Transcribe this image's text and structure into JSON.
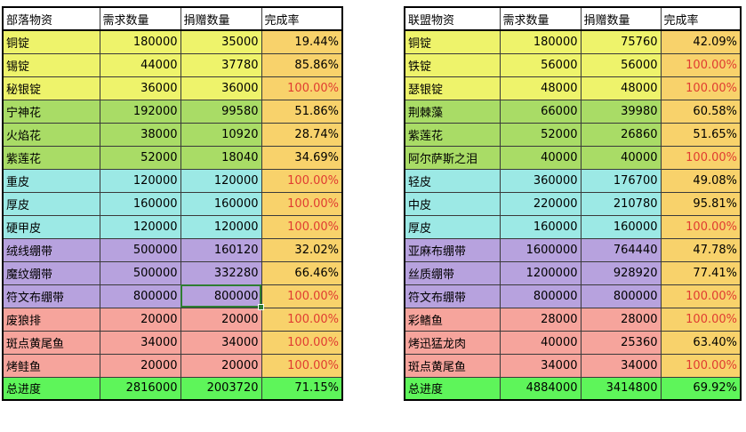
{
  "colors": {
    "ore": "#eef36b",
    "herb": "#a9dc66",
    "leather": "#9ce9e5",
    "bandage": "#b7a2de",
    "food": "#f6a49c",
    "rate": "#f8d26b",
    "total": "#5ef55a",
    "rate_full_text": "#e03c31"
  },
  "left": {
    "headers": [
      "部落物资",
      "需求数量",
      "捐赠数量",
      "完成率"
    ],
    "rows": [
      {
        "name": "铜锭",
        "need": "180000",
        "donated": "35000",
        "rate": "19.44%",
        "group": "ore",
        "full": false
      },
      {
        "name": "锡锭",
        "need": "44000",
        "donated": "37780",
        "rate": "85.86%",
        "group": "ore",
        "full": false
      },
      {
        "name": "秘银锭",
        "need": "36000",
        "donated": "36000",
        "rate": "100.00%",
        "group": "ore",
        "full": true
      },
      {
        "name": "宁神花",
        "need": "192000",
        "donated": "99580",
        "rate": "51.86%",
        "group": "herb",
        "full": false
      },
      {
        "name": "火焰花",
        "need": "38000",
        "donated": "10920",
        "rate": "28.74%",
        "group": "herb",
        "full": false
      },
      {
        "name": "紫莲花",
        "need": "52000",
        "donated": "18040",
        "rate": "34.69%",
        "group": "herb",
        "full": false
      },
      {
        "name": "重皮",
        "need": "120000",
        "donated": "120000",
        "rate": "100.00%",
        "group": "leather",
        "full": true
      },
      {
        "name": "厚皮",
        "need": "160000",
        "donated": "160000",
        "rate": "100.00%",
        "group": "leather",
        "full": true
      },
      {
        "name": "硬甲皮",
        "need": "120000",
        "donated": "120000",
        "rate": "100.00%",
        "group": "leather",
        "full": true
      },
      {
        "name": "绒线绷带",
        "need": "500000",
        "donated": "160120",
        "rate": "32.02%",
        "group": "bandage",
        "full": false
      },
      {
        "name": "魔纹绷带",
        "need": "500000",
        "donated": "332280",
        "rate": "66.46%",
        "group": "bandage",
        "full": false
      },
      {
        "name": "符文布绷带",
        "need": "800000",
        "donated": "800000",
        "rate": "100.00%",
        "group": "bandage",
        "full": true,
        "selected": true
      },
      {
        "name": "废狼排",
        "need": "20000",
        "donated": "20000",
        "rate": "100.00%",
        "group": "food",
        "full": true
      },
      {
        "name": "斑点黄尾鱼",
        "need": "34000",
        "donated": "34000",
        "rate": "100.00%",
        "group": "food",
        "full": true
      },
      {
        "name": "烤鲑鱼",
        "need": "20000",
        "donated": "20000",
        "rate": "100.00%",
        "group": "food",
        "full": true
      }
    ],
    "total": {
      "name": "总进度",
      "need": "2816000",
      "donated": "2003720",
      "rate": "71.15%"
    }
  },
  "right": {
    "headers": [
      "联盟物资",
      "需求数量",
      "捐赠数量",
      "完成率"
    ],
    "rows": [
      {
        "name": "铜锭",
        "need": "180000",
        "donated": "75760",
        "rate": "42.09%",
        "group": "ore",
        "full": false
      },
      {
        "name": "铁锭",
        "need": "56000",
        "donated": "56000",
        "rate": "100.00%",
        "group": "ore",
        "full": true
      },
      {
        "name": "瑟银锭",
        "need": "48000",
        "donated": "48000",
        "rate": "100.00%",
        "group": "ore",
        "full": true
      },
      {
        "name": "荆棘藻",
        "need": "66000",
        "donated": "39980",
        "rate": "60.58%",
        "group": "herb",
        "full": false
      },
      {
        "name": "紫莲花",
        "need": "52000",
        "donated": "26860",
        "rate": "51.65%",
        "group": "herb",
        "full": false
      },
      {
        "name": "阿尔萨斯之泪",
        "need": "40000",
        "donated": "40000",
        "rate": "100.00%",
        "group": "herb",
        "full": true
      },
      {
        "name": "轻皮",
        "need": "360000",
        "donated": "176700",
        "rate": "49.08%",
        "group": "leather",
        "full": false
      },
      {
        "name": "中皮",
        "need": "220000",
        "donated": "210780",
        "rate": "95.81%",
        "group": "leather",
        "full": false
      },
      {
        "name": "厚皮",
        "need": "160000",
        "donated": "160000",
        "rate": "100.00%",
        "group": "leather",
        "full": true
      },
      {
        "name": "亚麻布绷带",
        "need": "1600000",
        "donated": "764440",
        "rate": "47.78%",
        "group": "bandage",
        "full": false
      },
      {
        "name": "丝质绷带",
        "need": "1200000",
        "donated": "928920",
        "rate": "77.41%",
        "group": "bandage",
        "full": false
      },
      {
        "name": "符文布绷带",
        "need": "800000",
        "donated": "800000",
        "rate": "100.00%",
        "group": "bandage",
        "full": true
      },
      {
        "name": "彩鳍鱼",
        "need": "28000",
        "donated": "28000",
        "rate": "100.00%",
        "group": "food",
        "full": true
      },
      {
        "name": "烤迅猛龙肉",
        "need": "40000",
        "donated": "25360",
        "rate": "63.40%",
        "group": "food",
        "full": false
      },
      {
        "name": "斑点黄尾鱼",
        "need": "34000",
        "donated": "34000",
        "rate": "100.00%",
        "group": "food",
        "full": true
      }
    ],
    "total": {
      "name": "总进度",
      "need": "4884000",
      "donated": "3414800",
      "rate": "69.92%"
    }
  }
}
